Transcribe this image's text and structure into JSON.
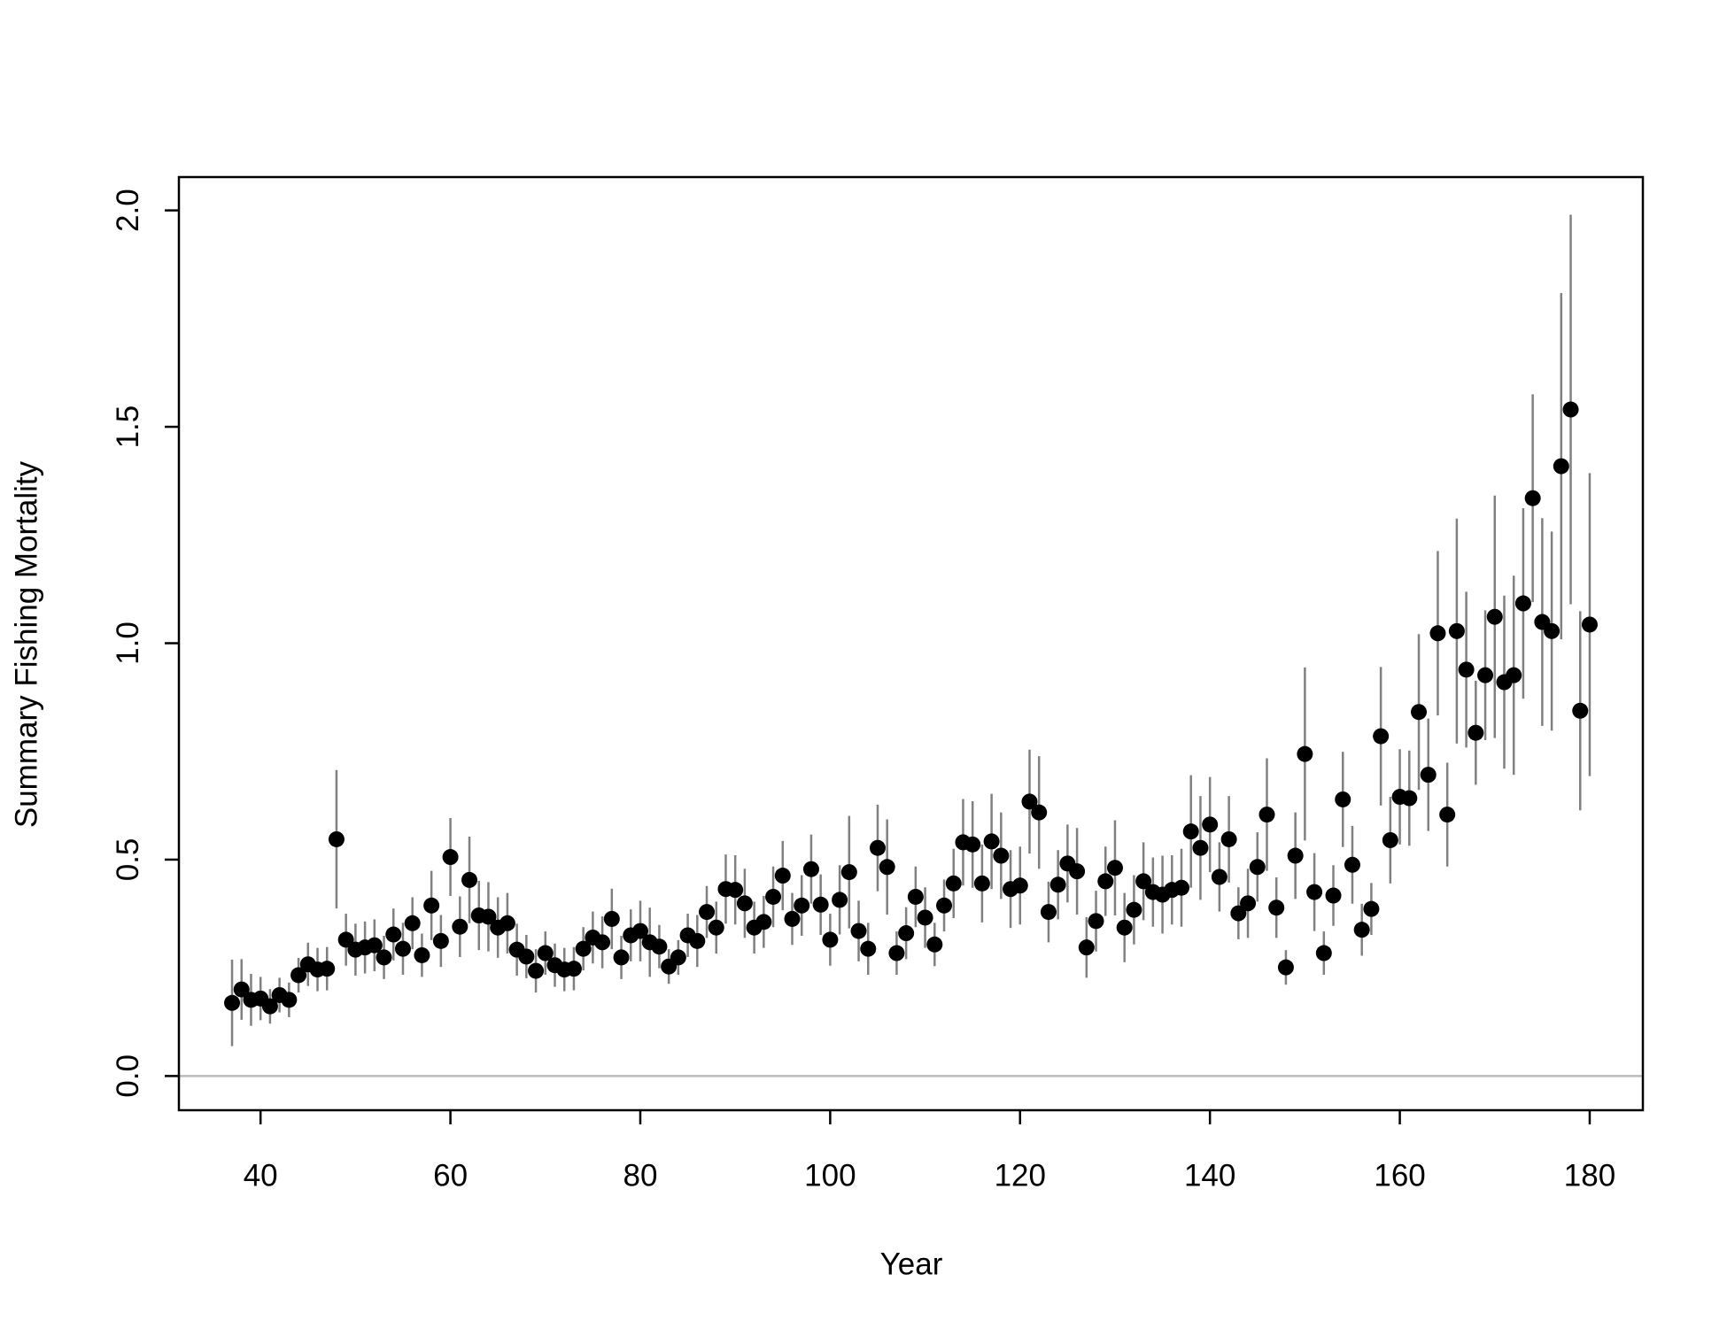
{
  "chart_data": {
    "type": "scatter",
    "xlabel": "Year",
    "ylabel": "Summary Fishing Mortality",
    "xlim": [
      31.4,
      185.6
    ],
    "ylim": [
      -0.079,
      2.077
    ],
    "xticks": [
      40,
      60,
      80,
      100,
      120,
      140,
      160,
      180
    ],
    "yticks": [
      {
        "value": 0,
        "label": "0.0"
      },
      0.5,
      {
        "value": 1,
        "label": "1.0"
      },
      1.5,
      {
        "value": 2,
        "label": "2.0"
      }
    ],
    "color": "#000000",
    "error_color": "#808080",
    "reference_line": {
      "y": 0,
      "color": "#bbbbbb"
    },
    "x": [
      37,
      38,
      39,
      40,
      41,
      42,
      43,
      44,
      45,
      46,
      47,
      48,
      49,
      50,
      51,
      52,
      53,
      54,
      55,
      56,
      57,
      58,
      59,
      60,
      61,
      62,
      63,
      64,
      65,
      66,
      67,
      68,
      69,
      70,
      71,
      72,
      73,
      74,
      75,
      76,
      77,
      78,
      79,
      80,
      81,
      82,
      83,
      84,
      85,
      86,
      87,
      88,
      89,
      90,
      91,
      92,
      93,
      94,
      95,
      96,
      97,
      98,
      99,
      100,
      101,
      102,
      103,
      104,
      105,
      106,
      107,
      108,
      109,
      110,
      111,
      112,
      113,
      114,
      115,
      116,
      117,
      118,
      119,
      120,
      121,
      122,
      123,
      124,
      125,
      126,
      127,
      128,
      129,
      130,
      131,
      132,
      133,
      134,
      135,
      136,
      137,
      138,
      139,
      140,
      141,
      142,
      143,
      144,
      145,
      146,
      147,
      148,
      149,
      150,
      151,
      152,
      153,
      154,
      155,
      156,
      157,
      158,
      159,
      160,
      161,
      162,
      163,
      164,
      165,
      166,
      167,
      168,
      169,
      170,
      171,
      172,
      173,
      174,
      175,
      176,
      177,
      178,
      179,
      180
    ],
    "values": [
      0.169,
      0.2,
      0.176,
      0.179,
      0.161,
      0.187,
      0.176,
      0.233,
      0.258,
      0.246,
      0.248,
      0.547,
      0.315,
      0.292,
      0.297,
      0.302,
      0.274,
      0.327,
      0.294,
      0.353,
      0.279,
      0.394,
      0.312,
      0.506,
      0.345,
      0.453,
      0.371,
      0.368,
      0.343,
      0.353,
      0.292,
      0.276,
      0.243,
      0.284,
      0.256,
      0.246,
      0.248,
      0.294,
      0.32,
      0.309,
      0.363,
      0.274,
      0.325,
      0.335,
      0.309,
      0.299,
      0.253,
      0.274,
      0.325,
      0.312,
      0.379,
      0.343,
      0.432,
      0.43,
      0.399,
      0.343,
      0.356,
      0.414,
      0.463,
      0.363,
      0.394,
      0.478,
      0.396,
      0.315,
      0.407,
      0.471,
      0.335,
      0.294,
      0.527,
      0.483,
      0.284,
      0.33,
      0.414,
      0.366,
      0.304,
      0.394,
      0.445,
      0.54,
      0.535,
      0.445,
      0.542,
      0.509,
      0.432,
      0.44,
      0.634,
      0.609,
      0.379,
      0.442,
      0.491,
      0.473,
      0.297,
      0.358,
      0.45,
      0.481,
      0.343,
      0.384,
      0.45,
      0.425,
      0.419,
      0.43,
      0.435,
      0.565,
      0.527,
      0.581,
      0.46,
      0.547,
      0.376,
      0.399,
      0.483,
      0.604,
      0.389,
      0.251,
      0.509,
      0.744,
      0.425,
      0.284,
      0.417,
      0.639,
      0.488,
      0.338,
      0.386,
      0.785,
      0.545,
      0.645,
      0.642,
      0.841,
      0.696,
      1.023,
      0.604,
      1.028,
      0.939,
      0.793,
      0.926,
      1.061,
      0.91,
      0.926,
      1.092,
      1.335,
      1.049,
      1.028,
      1.409,
      1.54,
      0.844,
      1.043
    ],
    "errors": [
      0.1,
      0.07,
      0.06,
      0.05,
      0.04,
      0.04,
      0.04,
      0.04,
      0.05,
      0.05,
      0.05,
      0.16,
      0.06,
      0.06,
      0.06,
      0.06,
      0.05,
      0.06,
      0.06,
      0.06,
      0.05,
      0.08,
      0.06,
      0.09,
      0.07,
      0.1,
      0.08,
      0.08,
      0.07,
      0.07,
      0.06,
      0.05,
      0.05,
      0.05,
      0.05,
      0.05,
      0.05,
      0.05,
      0.06,
      0.06,
      0.07,
      0.05,
      0.06,
      0.07,
      0.08,
      0.05,
      0.04,
      0.04,
      0.05,
      0.06,
      0.06,
      0.06,
      0.08,
      0.08,
      0.08,
      0.06,
      0.06,
      0.07,
      0.08,
      0.06,
      0.07,
      0.08,
      0.07,
      0.06,
      0.08,
      0.13,
      0.07,
      0.06,
      0.1,
      0.11,
      0.05,
      0.06,
      0.07,
      0.07,
      0.05,
      0.06,
      0.08,
      0.1,
      0.1,
      0.09,
      0.11,
      0.1,
      0.09,
      0.09,
      0.12,
      0.13,
      0.07,
      0.08,
      0.09,
      0.1,
      0.07,
      0.07,
      0.08,
      0.11,
      0.08,
      0.08,
      0.09,
      0.08,
      0.09,
      0.08,
      0.09,
      0.13,
      0.12,
      0.11,
      0.08,
      0.1,
      0.06,
      0.08,
      0.08,
      0.13,
      0.07,
      0.04,
      0.1,
      0.2,
      0.09,
      0.05,
      0.07,
      0.11,
      0.09,
      0.06,
      0.06,
      0.16,
      0.1,
      0.11,
      0.11,
      0.18,
      0.13,
      0.19,
      0.12,
      0.26,
      0.18,
      0.12,
      0.15,
      0.28,
      0.2,
      0.23,
      0.22,
      0.24,
      0.24,
      0.23,
      0.4,
      0.45,
      0.23,
      0.35
    ]
  }
}
